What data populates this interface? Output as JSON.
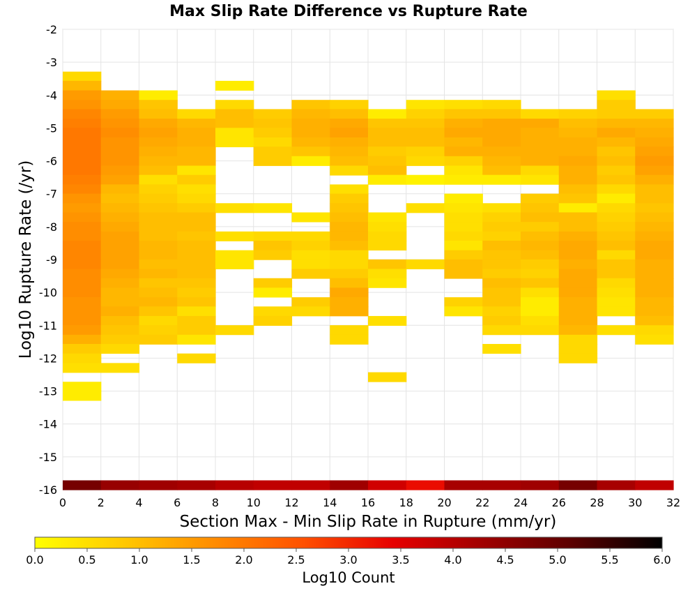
{
  "chart_data": {
    "type": "heatmap",
    "title": "Max Slip Rate Difference vs Rupture Rate",
    "xlabel": "Section Max - Min Slip Rate in Rupture (mm/yr)",
    "ylabel": "Log10 Rupture Rate (/yr)",
    "xlim": [
      0,
      32
    ],
    "ylim": [
      -16,
      -2
    ],
    "x_ticks": [
      "0",
      "2",
      "4",
      "6",
      "8",
      "10",
      "12",
      "14",
      "16",
      "18",
      "20",
      "22",
      "24",
      "26",
      "28",
      "30",
      "32"
    ],
    "y_ticks": [
      "-2",
      "-3",
      "-4",
      "-5",
      "-6",
      "-7",
      "-8",
      "-9",
      "-10",
      "-11",
      "-12",
      "-13",
      "-14",
      "-15",
      "-16"
    ],
    "x_bin_width": 2,
    "y_bin_height": 0.2857,
    "grid": true,
    "colorbar": {
      "label": "Log10 Count",
      "range": [
        0,
        6
      ],
      "ticks": [
        "0.0",
        "0.5",
        "1.0",
        "1.5",
        "2.0",
        "2.5",
        "3.0",
        "3.5",
        "4.0",
        "4.5",
        "5.0",
        "5.5",
        "6.0"
      ],
      "colors": [
        "#ffff00",
        "#ffc800",
        "#ff8c00",
        "#ff5000",
        "#e60000",
        "#a00000",
        "#5a0000",
        "#000000"
      ]
    },
    "bottom_row": {
      "y_center": -15.857,
      "values": [
        4.8,
        4.4,
        4.3,
        4.2,
        4.0,
        3.9,
        3.9,
        4.3,
        3.7,
        3.3,
        4.2,
        4.2,
        4.3,
        4.8,
        4.2,
        3.9
      ]
    },
    "bin_rows": [
      {
        "y": -3.43,
        "v": [
          0.6,
          0,
          0,
          0,
          0,
          0,
          0,
          0,
          0,
          0,
          0,
          0,
          0,
          0,
          0,
          0
        ]
      },
      {
        "y": -3.71,
        "v": [
          1.1,
          0,
          0,
          0,
          0.3,
          0,
          0,
          0,
          0,
          0,
          0,
          0,
          0,
          0,
          0,
          0
        ]
      },
      {
        "y": -4.0,
        "v": [
          1.5,
          1.2,
          0.3,
          0,
          0,
          0,
          0,
          0,
          0,
          0,
          0,
          0,
          0,
          0,
          0.5,
          0
        ]
      },
      {
        "y": -4.29,
        "v": [
          1.6,
          1.3,
          0.9,
          0,
          0.6,
          0,
          0.9,
          0.7,
          0,
          0.4,
          0.5,
          0.6,
          0,
          0,
          0.8,
          0
        ]
      },
      {
        "y": -4.57,
        "v": [
          1.8,
          1.5,
          1.0,
          0.6,
          1.0,
          0.8,
          1.1,
          1.0,
          0.3,
          0.7,
          0.9,
          0.9,
          0.6,
          0.7,
          0.8,
          0.8
        ]
      },
      {
        "y": -4.86,
        "v": [
          1.9,
          1.6,
          1.3,
          1.1,
          1.0,
          0.9,
          1.2,
          1.3,
          0.9,
          0.9,
          1.2,
          1.3,
          1.3,
          1.0,
          1.1,
          1.1
        ]
      },
      {
        "y": -5.14,
        "v": [
          2.0,
          1.7,
          1.4,
          1.2,
          0.4,
          0.8,
          1.2,
          1.4,
          1.0,
          1.0,
          1.3,
          1.3,
          1.2,
          1.1,
          1.3,
          1.2
        ]
      },
      {
        "y": -5.43,
        "v": [
          2.0,
          1.6,
          1.3,
          1.2,
          0.4,
          0.6,
          1.1,
          1.2,
          1.0,
          1.0,
          1.1,
          1.3,
          1.2,
          1.2,
          1.1,
          1.3
        ]
      },
      {
        "y": -5.71,
        "v": [
          2.0,
          1.6,
          1.2,
          1.1,
          0,
          0.8,
          0.9,
          1.1,
          0.8,
          0.7,
          1.2,
          1.2,
          1.2,
          1.2,
          0.9,
          1.4
        ]
      },
      {
        "y": -6.0,
        "v": [
          2.0,
          1.6,
          1.1,
          1.1,
          0,
          0.8,
          0.3,
          1.0,
          0.9,
          0.6,
          0.7,
          1.1,
          1.2,
          1.3,
          1.0,
          1.5
        ]
      },
      {
        "y": -6.29,
        "v": [
          2.0,
          1.5,
          1.0,
          0.4,
          0,
          0,
          0,
          0.6,
          1.0,
          0,
          0.4,
          1.0,
          0.6,
          1.2,
          0.8,
          1.4
        ]
      },
      {
        "y": -6.57,
        "v": [
          1.9,
          1.4,
          0.5,
          0.8,
          0,
          0,
          0,
          0,
          0.3,
          0.2,
          0.3,
          0.3,
          0.4,
          1.2,
          0.9,
          1.2
        ]
      },
      {
        "y": -6.86,
        "v": [
          1.8,
          1.1,
          0.7,
          0.5,
          0,
          0,
          0,
          0.5,
          0,
          0,
          0,
          0,
          0,
          1.0,
          0.6,
          1.0
        ]
      },
      {
        "y": -7.14,
        "v": [
          1.6,
          1.0,
          0.8,
          0.6,
          0,
          0,
          0,
          0.8,
          0,
          0,
          0.3,
          0,
          0.8,
          0.9,
          0.3,
          1.0
        ]
      },
      {
        "y": -7.43,
        "v": [
          1.5,
          1.1,
          0.9,
          0.8,
          0.5,
          0.4,
          0,
          0.9,
          0,
          0.5,
          0.4,
          0.5,
          0.9,
          0.3,
          0.6,
          0.9
        ]
      },
      {
        "y": -7.71,
        "v": [
          1.6,
          1.2,
          1.0,
          1.0,
          0,
          0,
          0.4,
          1.0,
          0.4,
          0,
          0.5,
          0.7,
          1.0,
          1.0,
          0.7,
          1.0
        ]
      },
      {
        "y": -8.0,
        "v": [
          1.7,
          1.3,
          1.0,
          1.0,
          0,
          0,
          0,
          1.1,
          0.5,
          0,
          0.5,
          0.8,
          0.8,
          1.0,
          0.8,
          1.1
        ]
      },
      {
        "y": -8.29,
        "v": [
          1.7,
          1.4,
          1.0,
          0.9,
          0.5,
          0.6,
          0.6,
          1.1,
          0.6,
          0,
          0.6,
          0.7,
          1.0,
          1.2,
          0.9,
          1.2
        ]
      },
      {
        "y": -8.57,
        "v": [
          1.8,
          1.4,
          1.1,
          1.0,
          0,
          0.9,
          0.7,
          1.0,
          0.6,
          0,
          0.4,
          1.0,
          1.1,
          1.3,
          1.0,
          1.3
        ]
      },
      {
        "y": -8.86,
        "v": [
          1.8,
          1.4,
          1.1,
          1.0,
          0.4,
          0.8,
          0.5,
          0.6,
          0,
          0,
          0.8,
          0.9,
          1.0,
          1.3,
          0.6,
          1.3
        ]
      },
      {
        "y": -9.14,
        "v": [
          1.8,
          1.4,
          1.0,
          1.0,
          0.4,
          0,
          0.5,
          0.6,
          0.9,
          0.6,
          1.0,
          0.9,
          0.8,
          1.2,
          0.9,
          1.2
        ]
      },
      {
        "y": -9.43,
        "v": [
          1.7,
          1.3,
          1.1,
          1.0,
          0,
          0,
          0.8,
          0.8,
          0.5,
          0,
          1.0,
          0.8,
          0.7,
          1.3,
          0.9,
          1.2
        ]
      },
      {
        "y": -9.71,
        "v": [
          1.7,
          1.2,
          0.9,
          0.9,
          0,
          0.8,
          0,
          1.0,
          0.4,
          0,
          0,
          1.0,
          0.9,
          1.3,
          0.6,
          1.2
        ]
      },
      {
        "y": -10.0,
        "v": [
          1.7,
          1.1,
          1.0,
          0.8,
          0,
          0.3,
          0,
          1.3,
          0,
          0,
          0,
          0.9,
          0.5,
          1.3,
          0.5,
          1.2
        ]
      },
      {
        "y": -10.29,
        "v": [
          1.6,
          1.1,
          1.1,
          0.9,
          0,
          0,
          0.8,
          1.2,
          0,
          0,
          0.7,
          0.9,
          0.3,
          1.2,
          0.4,
          1.1
        ]
      },
      {
        "y": -10.57,
        "v": [
          1.6,
          1.2,
          0.9,
          0.5,
          0,
          0.6,
          0.6,
          1.2,
          0,
          0,
          0.4,
          0.7,
          0.3,
          1.2,
          0.4,
          1.1
        ]
      },
      {
        "y": -10.86,
        "v": [
          1.6,
          1.0,
          0.6,
          0.8,
          0,
          0.7,
          0,
          0,
          0.5,
          0,
          0,
          0.8,
          0.5,
          1.2,
          0,
          1.0
        ]
      },
      {
        "y": -11.14,
        "v": [
          1.5,
          0.9,
          0.7,
          0.8,
          0.6,
          0,
          0,
          0.6,
          0,
          0,
          0,
          0.6,
          0.6,
          1.1,
          0.5,
          0.6
        ]
      },
      {
        "y": -11.43,
        "v": [
          1.2,
          0.8,
          0.8,
          0.4,
          0,
          0,
          0,
          0.6,
          0,
          0,
          0,
          0,
          0,
          0.6,
          0,
          0.5
        ]
      },
      {
        "y": -11.71,
        "v": [
          0.8,
          0.6,
          0,
          0,
          0,
          0,
          0,
          0,
          0,
          0,
          0,
          0.5,
          0,
          0.6,
          0,
          0
        ]
      },
      {
        "y": -12.0,
        "v": [
          0.6,
          0,
          0,
          0.6,
          0,
          0,
          0,
          0,
          0,
          0,
          0,
          0,
          0,
          0.6,
          0,
          0
        ]
      },
      {
        "y": -12.29,
        "v": [
          0.5,
          0.5,
          0,
          0,
          0,
          0,
          0,
          0,
          0,
          0,
          0,
          0,
          0,
          0,
          0,
          0
        ]
      },
      {
        "y": -12.57,
        "v": [
          0,
          0,
          0,
          0,
          0,
          0,
          0,
          0,
          0.6,
          0,
          0,
          0,
          0,
          0,
          0,
          0
        ]
      },
      {
        "y": -12.86,
        "v": [
          0.3,
          0,
          0,
          0,
          0,
          0,
          0,
          0,
          0,
          0,
          0,
          0,
          0,
          0,
          0,
          0
        ]
      },
      {
        "y": -13.14,
        "v": [
          0.3,
          0,
          0,
          0,
          0,
          0,
          0,
          0,
          0,
          0,
          0,
          0,
          0,
          0,
          0,
          0
        ]
      }
    ]
  }
}
